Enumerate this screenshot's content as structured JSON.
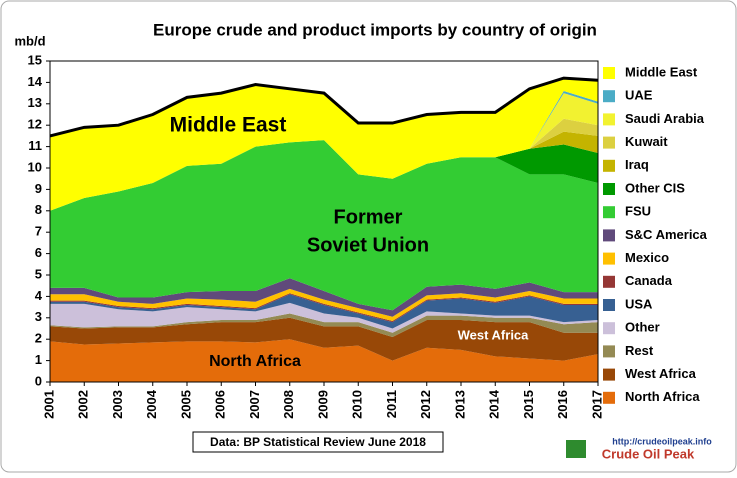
{
  "chart_data": {
    "type": "stacked-area",
    "title": "Europe crude and product imports by country of origin",
    "y_label": "mb/d",
    "categories": [
      "2001",
      "2002",
      "2003",
      "2004",
      "2005",
      "2006",
      "2007",
      "2008",
      "2009",
      "2010",
      "2011",
      "2012",
      "2013",
      "2014",
      "2015",
      "2016",
      "2017"
    ],
    "ylim": [
      0,
      15
    ],
    "yticks": [
      0,
      1,
      2,
      3,
      4,
      5,
      6,
      7,
      8,
      9,
      10,
      11,
      12,
      13,
      14,
      15
    ],
    "grid": false,
    "legend": "right",
    "total_line_color": "#000000",
    "series": [
      {
        "name": "North Africa",
        "color": "#e46c0a",
        "values": [
          1.9,
          1.75,
          1.8,
          1.85,
          1.9,
          1.9,
          1.85,
          2.0,
          1.6,
          1.7,
          1.0,
          1.6,
          1.5,
          1.2,
          1.1,
          1.0,
          1.3
        ]
      },
      {
        "name": "West Africa",
        "color": "#984807",
        "values": [
          0.7,
          0.75,
          0.75,
          0.7,
          0.8,
          0.9,
          0.95,
          1.0,
          1.0,
          0.9,
          1.1,
          1.3,
          1.4,
          1.6,
          1.7,
          1.3,
          1.0
        ]
      },
      {
        "name": "Rest",
        "color": "#948a54",
        "values": [
          0.05,
          0.05,
          0.05,
          0.05,
          0.1,
          0.1,
          0.1,
          0.2,
          0.2,
          0.2,
          0.2,
          0.2,
          0.2,
          0.2,
          0.2,
          0.4,
          0.5
        ]
      },
      {
        "name": "Other",
        "color": "#ccc0da",
        "values": [
          1.0,
          1.1,
          0.8,
          0.7,
          0.7,
          0.5,
          0.4,
          0.5,
          0.4,
          0.2,
          0.2,
          0.2,
          0.1,
          0.1,
          0.1,
          0.1,
          0.1
        ]
      },
      {
        "name": "USA",
        "color": "#376092",
        "values": [
          0.1,
          0.1,
          0.1,
          0.1,
          0.1,
          0.1,
          0.1,
          0.4,
          0.4,
          0.2,
          0.3,
          0.5,
          0.7,
          0.6,
          0.9,
          0.8,
          0.7
        ]
      },
      {
        "name": "Canada",
        "color": "#953735",
        "values": [
          0.05,
          0.05,
          0.05,
          0.05,
          0.05,
          0.05,
          0.05,
          0.05,
          0.05,
          0.05,
          0.05,
          0.05,
          0.05,
          0.05,
          0.05,
          0.05,
          0.05
        ]
      },
      {
        "name": "Mexico",
        "color": "#ffc000",
        "values": [
          0.3,
          0.3,
          0.2,
          0.2,
          0.25,
          0.3,
          0.3,
          0.2,
          0.2,
          0.2,
          0.2,
          0.2,
          0.2,
          0.2,
          0.2,
          0.25,
          0.25
        ]
      },
      {
        "name": "S&C America",
        "color": "#604a7b",
        "values": [
          0.3,
          0.3,
          0.2,
          0.3,
          0.3,
          0.4,
          0.5,
          0.5,
          0.4,
          0.2,
          0.3,
          0.4,
          0.4,
          0.4,
          0.4,
          0.3,
          0.3
        ]
      },
      {
        "name": "FSU",
        "color": "#33cc33",
        "values": [
          3.6,
          4.2,
          4.95,
          5.35,
          5.9,
          5.95,
          6.75,
          6.35,
          7.05,
          6.05,
          6.15,
          5.75,
          5.95,
          6.15,
          5.05,
          5.5,
          5.1
        ]
      },
      {
        "name": "Other CIS",
        "color": "#009900",
        "values": [
          0,
          0,
          0,
          0,
          0,
          0,
          0,
          0,
          0,
          0,
          0,
          0,
          0,
          0,
          1.2,
          1.4,
          1.4
        ]
      },
      {
        "name": "Iraq",
        "color": "#c4b400",
        "values": [
          0,
          0,
          0,
          0,
          0,
          0,
          0,
          0,
          0,
          0,
          0,
          0,
          0,
          0,
          0,
          0.6,
          0.8
        ]
      },
      {
        "name": "Kuwait",
        "color": "#dcd040",
        "values": [
          0,
          0,
          0,
          0,
          0,
          0,
          0,
          0,
          0,
          0,
          0,
          0,
          0,
          0,
          0,
          0.6,
          0.5
        ]
      },
      {
        "name": "Saudi Arabia",
        "color": "#f2f230",
        "values": [
          0,
          0,
          0,
          0,
          0,
          0,
          0,
          0,
          0,
          0,
          0,
          0,
          0,
          0,
          0,
          1.2,
          1.0
        ]
      },
      {
        "name": "UAE",
        "color": "#4bacc6",
        "values": [
          0,
          0,
          0,
          0,
          0,
          0,
          0,
          0,
          0,
          0,
          0,
          0,
          0,
          0,
          0,
          0.1,
          0.1
        ]
      },
      {
        "name": "Middle East",
        "color": "#ffff00",
        "values": [
          3.5,
          3.3,
          3.1,
          3.2,
          3.2,
          3.3,
          2.9,
          2.5,
          2.2,
          2.4,
          2.6,
          2.3,
          2.1,
          2.1,
          2.8,
          0.6,
          1.0
        ]
      }
    ],
    "annotations": [
      "Middle East",
      "Former",
      "Soviet Union",
      "West Africa",
      "North Africa"
    ],
    "source": "Data: BP Statistical Review June 2018",
    "logo_url": "http://crudeoilpeak.info",
    "logo_name": "Crude Oil Peak"
  }
}
